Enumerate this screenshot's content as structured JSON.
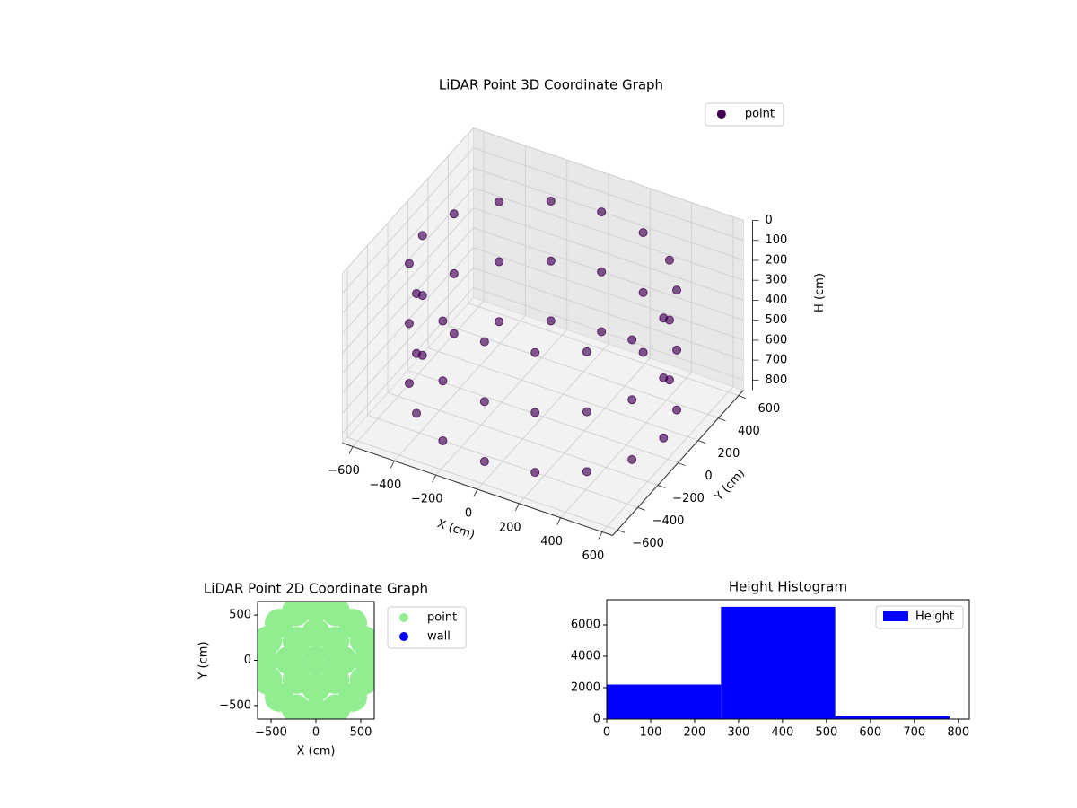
{
  "chart_data": [
    {
      "type": "scatter3d",
      "title": "LiDAR Point 3D Coordinate Graph",
      "xlabel": "X (cm)",
      "ylabel": "Y (cm)",
      "zlabel": "H (cm)",
      "xlim": [
        -650,
        650
      ],
      "ylim": [
        -650,
        650
      ],
      "zlim": [
        850,
        0
      ],
      "xticks": [
        {
          "value": -600,
          "label": "−600"
        },
        {
          "value": -400,
          "label": "−400"
        },
        {
          "value": -200,
          "label": "−200"
        },
        0,
        200,
        400,
        600
      ],
      "yticks": [
        {
          "value": -600,
          "label": "−600"
        },
        {
          "value": -400,
          "label": "−400"
        },
        {
          "value": -200,
          "label": "−200"
        },
        0,
        200,
        400,
        600
      ],
      "zticks": [
        0,
        100,
        200,
        300,
        400,
        500,
        600,
        700,
        800
      ],
      "grid": true,
      "legend": "upper right",
      "series": [
        {
          "name": "point",
          "color": "#440154",
          "x": [
            580,
            536,
            410,
            222,
            0,
            -222,
            -410,
            -536,
            -580,
            -536,
            -410,
            -222,
            0,
            222,
            410,
            536,
            580,
            536,
            410,
            222,
            0,
            -222,
            -410,
            -536,
            -580,
            -536,
            -410,
            -222,
            0,
            222,
            410,
            536,
            580,
            536,
            410,
            222,
            0,
            -222,
            -410,
            -536,
            -580,
            -536,
            -410,
            -222,
            0,
            222,
            410,
            536
          ],
          "y": [
            0,
            222,
            410,
            536,
            580,
            536,
            410,
            222,
            0,
            -222,
            -410,
            -536,
            -580,
            -536,
            -410,
            -222,
            0,
            222,
            410,
            536,
            580,
            536,
            410,
            222,
            0,
            -222,
            -410,
            -536,
            -580,
            -536,
            -410,
            -222,
            0,
            222,
            410,
            536,
            580,
            536,
            410,
            222,
            0,
            -222,
            -410,
            -536,
            -580,
            -536,
            -410,
            -222
          ],
          "z": [
            150,
            150,
            150,
            150,
            150,
            150,
            150,
            150,
            150,
            150,
            150,
            150,
            150,
            150,
            150,
            150,
            450,
            450,
            450,
            450,
            450,
            450,
            450,
            450,
            450,
            450,
            450,
            450,
            450,
            450,
            450,
            450,
            750,
            750,
            750,
            750,
            750,
            750,
            750,
            750,
            750,
            750,
            750,
            750,
            750,
            750,
            750,
            750
          ]
        }
      ]
    },
    {
      "type": "scatter",
      "title": "LiDAR Point 2D Coordinate Graph",
      "xlabel": "X (cm)",
      "ylabel": "Y (cm)",
      "xlim": [
        -650,
        650
      ],
      "ylim": [
        -650,
        650
      ],
      "xticks": [
        {
          "value": -500,
          "label": "−500"
        },
        0,
        500
      ],
      "yticks": [
        {
          "value": -500,
          "label": "−500"
        },
        0,
        500
      ],
      "legend": "upper left outside",
      "series": [
        {
          "name": "point",
          "color": "#90ee90",
          "x": [
            580,
            536,
            410,
            222,
            0,
            -222,
            -410,
            -536,
            -580,
            -536,
            -410,
            -222,
            0,
            222,
            410,
            536,
            300,
            212,
            0,
            -212,
            -300,
            -212,
            0,
            212,
            0
          ],
          "y": [
            0,
            222,
            410,
            536,
            580,
            536,
            410,
            222,
            0,
            -222,
            -410,
            -536,
            -580,
            -536,
            -410,
            -222,
            0,
            212,
            300,
            212,
            0,
            -212,
            -300,
            -212,
            0
          ]
        },
        {
          "name": "wall",
          "color": "#0000ff",
          "x": [],
          "y": []
        }
      ]
    },
    {
      "type": "histogram",
      "title": "Height Histogram",
      "xlim": [
        0,
        825
      ],
      "ylim": [
        0,
        7600
      ],
      "xticks": [
        0,
        100,
        200,
        300,
        400,
        500,
        600,
        700,
        800
      ],
      "yticks": [
        0,
        2000,
        4000,
        6000
      ],
      "legend": "upper right",
      "series": [
        {
          "name": "Height",
          "color": "#0000ff",
          "bins": [
            0,
            260,
            520,
            780
          ],
          "counts": [
            2200,
            7150,
            180
          ]
        }
      ]
    }
  ]
}
